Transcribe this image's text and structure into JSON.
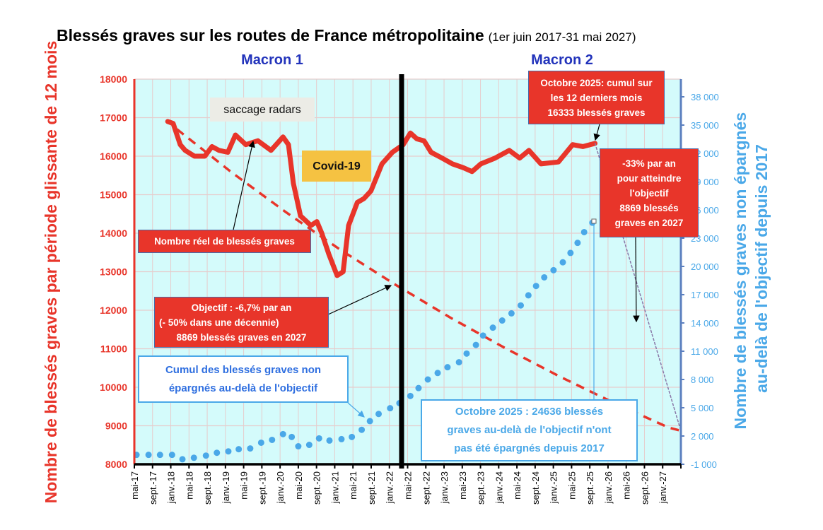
{
  "title": {
    "main": "Blessés graves sur les routes de France métropolitaine",
    "sub": "(1er juin 2017-31 mai 2027)"
  },
  "periods": {
    "macron1": "Macron 1",
    "macron2": "Macron 2"
  },
  "annotations": {
    "saccage": "saccage radars",
    "covid": "Covid-19",
    "reel": "Nombre réel de blessés graves",
    "objectif": [
      "Objectif : -6,7% par an",
      "(- 50% dans une décennie)",
      "8869 blessés graves en 2027"
    ],
    "octobre_cumul": [
      "Octobre 2025: cumul sur",
      "les 12 derniers mois",
      "16333 blessés graves"
    ],
    "moins33": [
      "-33% par an",
      "pour atteindre",
      "l'objectif",
      "8869 blessés",
      "graves en 2027"
    ],
    "cumul_label": [
      "Cumul des blessés graves non",
      "épargnés  au-delà de l'objectif"
    ],
    "octobre_non_epargnes": [
      "Octobre 2025 : 24636 blessés",
      "graves au-delà de l'objectif n'ont",
      "pas été épargnés depuis 2017"
    ]
  },
  "colors": {
    "red": "#e8352a",
    "blue": "#4aa8e8",
    "plot_bg": "#d4fbfb",
    "grid": "#e6cccc",
    "right_axis": "#5b7fbf",
    "period_label": "#2233bb"
  },
  "chart_data": {
    "type": "line",
    "title": "Blessés graves sur les routes de France métropolitaine (1er juin 2017-31 mai 2027)",
    "xlabel": "",
    "ylabel": "Nombre de blessés graves par période glissante de 12 mois",
    "y2label": [
      "Nombre de blessés graves non épargnés",
      "au-delà de l'objectif depuis 2017"
    ],
    "xlim": [
      2017.33,
      2027.33
    ],
    "ylim": [
      8000,
      18000
    ],
    "y2lim": [
      -1000,
      39000
    ],
    "x_tick_labels": [
      "mai-17",
      "sept.-17",
      "janv.-18",
      "mai-18",
      "sept.-18",
      "janv.-19",
      "mai-19",
      "sept.-19",
      "janv.-20",
      "mai-20",
      "sept.-20",
      "janv.-21",
      "mai-21",
      "sept.-21",
      "janv.-22",
      "mai-22",
      "sept.-22",
      "janv.-23",
      "mai-23",
      "sept.-23",
      "janv.-24",
      "mai-24",
      "sept.-24",
      "janv.-25",
      "mai-25",
      "sept.-25",
      "janv.-26",
      "mai-26",
      "sept.-26",
      "janv.-27"
    ],
    "y_ticks": [
      8000,
      9000,
      10000,
      11000,
      12000,
      13000,
      14000,
      15000,
      16000,
      17000,
      18000
    ],
    "y2_ticks": [
      "-1 000",
      "2 000",
      "5 000",
      "8 000",
      "11 000",
      "14 000",
      "17 000",
      "20 000",
      "23 000",
      "26 000",
      "29 000",
      "32 000",
      "35 000",
      "38 000"
    ],
    "y2_tick_values": [
      -1000,
      2000,
      5000,
      8000,
      11000,
      14000,
      17000,
      20000,
      23000,
      26000,
      29000,
      32000,
      35000,
      38000
    ],
    "period_split_x": 2022.22,
    "grid": true,
    "series": [
      {
        "name": "Nombre réel de blessés graves",
        "axis": "left",
        "style": "solid-thick-red",
        "points": [
          [
            2017.94,
            16900
          ],
          [
            2018.04,
            16850
          ],
          [
            2018.17,
            16300
          ],
          [
            2018.26,
            16150
          ],
          [
            2018.43,
            16000
          ],
          [
            2018.62,
            16000
          ],
          [
            2018.75,
            16250
          ],
          [
            2018.88,
            16150
          ],
          [
            2019.04,
            16100
          ],
          [
            2019.18,
            16550
          ],
          [
            2019.37,
            16300
          ],
          [
            2019.59,
            16400
          ],
          [
            2019.83,
            16150
          ],
          [
            2020.05,
            16500
          ],
          [
            2020.15,
            16300
          ],
          [
            2020.24,
            15300
          ],
          [
            2020.37,
            14450
          ],
          [
            2020.56,
            14200
          ],
          [
            2020.67,
            14300
          ],
          [
            2020.76,
            14000
          ],
          [
            2020.89,
            13450
          ],
          [
            2021.04,
            12900
          ],
          [
            2021.15,
            13000
          ],
          [
            2021.25,
            14200
          ],
          [
            2021.41,
            14800
          ],
          [
            2021.53,
            14900
          ],
          [
            2021.66,
            15100
          ],
          [
            2021.86,
            15800
          ],
          [
            2022.05,
            16100
          ],
          [
            2022.25,
            16300
          ],
          [
            2022.38,
            16600
          ],
          [
            2022.5,
            16450
          ],
          [
            2022.63,
            16400
          ],
          [
            2022.76,
            16100
          ],
          [
            2022.96,
            15950
          ],
          [
            2023.15,
            15800
          ],
          [
            2023.35,
            15700
          ],
          [
            2023.51,
            15600
          ],
          [
            2023.67,
            15800
          ],
          [
            2023.93,
            15950
          ],
          [
            2024.19,
            16150
          ],
          [
            2024.38,
            15950
          ],
          [
            2024.55,
            16150
          ],
          [
            2024.77,
            15800
          ],
          [
            2025.09,
            15850
          ],
          [
            2025.35,
            16300
          ],
          [
            2025.54,
            16250
          ],
          [
            2025.76,
            16333
          ]
        ]
      },
      {
        "name": "Objectif -6,7% par an",
        "axis": "left",
        "style": "dashed-red",
        "points": [
          [
            2018.11,
            16700
          ],
          [
            2019.11,
            15580
          ],
          [
            2020.11,
            14540
          ],
          [
            2021.11,
            13560
          ],
          [
            2022.11,
            12660
          ],
          [
            2023.11,
            11810
          ],
          [
            2024.11,
            11020
          ],
          [
            2025.11,
            10280
          ],
          [
            2026.11,
            9590
          ],
          [
            2027.11,
            8950
          ],
          [
            2027.33,
            8869
          ]
        ]
      },
      {
        "name": "-33% par an",
        "axis": "left",
        "style": "dotted-purple",
        "points": [
          [
            2025.76,
            16333
          ],
          [
            2027.33,
            8869
          ]
        ]
      },
      {
        "name": "Cumul des blessés graves non épargnés au-delà de l'objectif",
        "axis": "right",
        "style": "dots-blue",
        "points": [
          [
            2017.37,
            0
          ],
          [
            2017.59,
            0
          ],
          [
            2017.8,
            0
          ],
          [
            2018.02,
            0
          ],
          [
            2018.21,
            -470
          ],
          [
            2018.42,
            -310
          ],
          [
            2018.64,
            -80
          ],
          [
            2018.84,
            220
          ],
          [
            2019.05,
            370
          ],
          [
            2019.24,
            600
          ],
          [
            2019.45,
            680
          ],
          [
            2019.65,
            1290
          ],
          [
            2019.85,
            1590
          ],
          [
            2020.05,
            2200
          ],
          [
            2020.21,
            1900
          ],
          [
            2020.33,
            910
          ],
          [
            2020.53,
            1060
          ],
          [
            2020.71,
            1750
          ],
          [
            2020.9,
            1520
          ],
          [
            2021.12,
            1670
          ],
          [
            2021.31,
            1900
          ],
          [
            2021.49,
            2660
          ],
          [
            2021.64,
            3580
          ],
          [
            2021.8,
            4340
          ],
          [
            2022.01,
            4950
          ],
          [
            2022.18,
            5490
          ],
          [
            2022.38,
            6250
          ],
          [
            2022.53,
            7090
          ],
          [
            2022.7,
            8000
          ],
          [
            2022.88,
            8690
          ],
          [
            2023.06,
            9300
          ],
          [
            2023.27,
            9830
          ],
          [
            2023.41,
            10750
          ],
          [
            2023.58,
            11670
          ],
          [
            2023.71,
            12660
          ],
          [
            2023.89,
            13500
          ],
          [
            2024.06,
            14260
          ],
          [
            2024.23,
            15020
          ],
          [
            2024.4,
            15860
          ],
          [
            2024.54,
            16930
          ],
          [
            2024.68,
            17920
          ],
          [
            2024.83,
            18840
          ],
          [
            2025.0,
            19600
          ],
          [
            2025.17,
            20440
          ],
          [
            2025.31,
            21430
          ],
          [
            2025.44,
            22500
          ],
          [
            2025.56,
            23640
          ],
          [
            2025.71,
            24636
          ]
        ]
      }
    ]
  }
}
